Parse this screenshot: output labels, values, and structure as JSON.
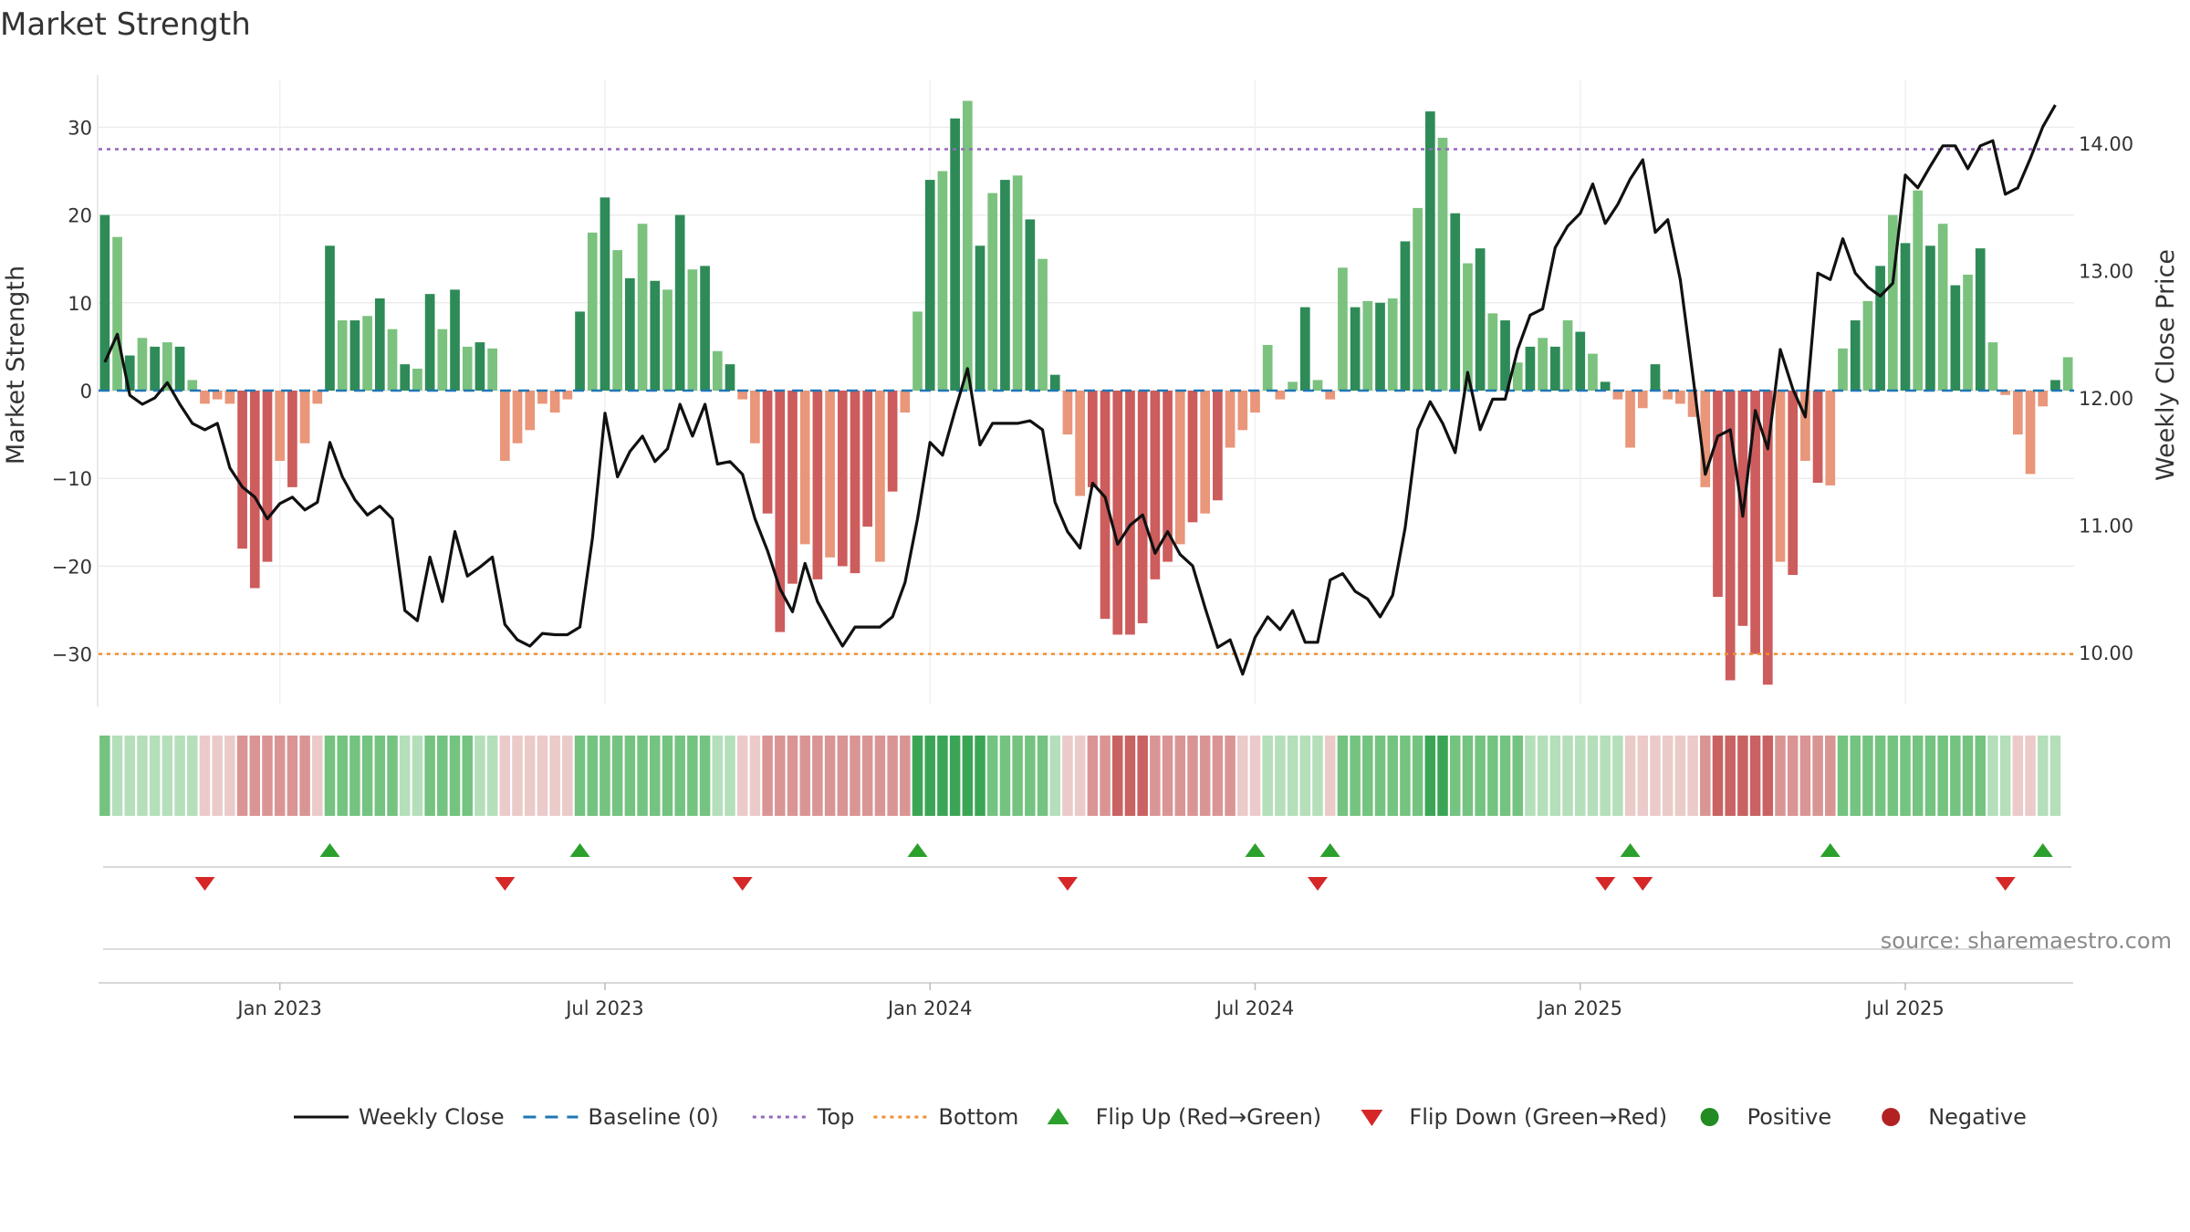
{
  "chart_data": {
    "type": "bar+line",
    "title": "Market Strength",
    "ylabel_left": "Market Strength",
    "ylabel_right": "Weekly Close Price",
    "left_ylim": [
      -36,
      36
    ],
    "right_ylim": [
      9.45,
      14.5
    ],
    "left_ticks": [
      "30",
      "20",
      "10",
      "0",
      "−10",
      "−20",
      "−30"
    ],
    "left_tick_values": [
      30,
      20,
      10,
      0,
      -10,
      -20,
      -30
    ],
    "right_ticks": [
      "14.00",
      "13.00",
      "12.00",
      "11.00",
      "10.00"
    ],
    "right_tick_values": [
      14,
      13,
      12,
      11,
      10
    ],
    "top_level": 27.5,
    "bottom_level": -30,
    "x_ticks": [
      "Jan 2023",
      "Jul 2023",
      "Jan 2024",
      "Jul 2024",
      "Jan 2025",
      "Jul 2025"
    ],
    "x_tick_weeks": [
      14,
      40,
      66,
      92,
      118,
      144
    ],
    "weeks": 158,
    "strength": [
      20,
      17.5,
      4,
      6,
      5,
      5.5,
      5,
      1.2,
      -1.5,
      -1,
      -1.5,
      -18,
      -22.5,
      -19.5,
      -8,
      -11,
      -6,
      -1.5,
      16.5,
      8,
      8,
      8.5,
      10.5,
      7,
      3,
      2.5,
      11,
      7,
      11.5,
      5,
      5.5,
      4.8,
      -8,
      -6,
      -4.5,
      -1.5,
      -2.5,
      -1,
      9,
      18,
      22,
      16,
      12.8,
      19,
      12.5,
      11.5,
      20,
      13.8,
      14.2,
      4.5,
      3,
      -1,
      -6,
      -14,
      -27.5,
      -22,
      -17.5,
      -21.5,
      -19,
      -20,
      -20.8,
      -15.5,
      -19.5,
      -11.5,
      -2.5,
      9,
      24,
      25,
      31,
      33,
      16.5,
      22.5,
      24,
      24.5,
      19.5,
      15,
      1.8,
      -5,
      -12,
      -11,
      -26,
      -27.8,
      -27.8,
      -26.5,
      -21.5,
      -19.5,
      -17.5,
      -15,
      -14,
      -12.5,
      -6.5,
      -4.5,
      -2.5,
      5.2,
      -1,
      1,
      9.5,
      1.2,
      -1,
      14,
      9.5,
      10.2,
      10,
      10.5,
      17,
      20.8,
      31.8,
      28.8,
      20.2,
      14.5,
      16.2,
      8.8,
      8,
      3.2,
      5,
      6,
      5,
      8,
      6.7,
      4.2,
      1,
      -1,
      -6.5,
      -2,
      3,
      -1,
      -1.5,
      -3,
      -11,
      -23.5,
      -33,
      -26.8,
      -30,
      -33.5,
      -19.5,
      -21,
      -8,
      -10.5,
      -10.8,
      4.8,
      8,
      10.2,
      14.2,
      20,
      16.8,
      22.8,
      16.5,
      19,
      12,
      13.2,
      16.2,
      5.5,
      -0.5,
      -5,
      -9.5,
      -1.8,
      1.2,
      3.8
    ],
    "weekly_close": [
      12.28,
      12.5,
      12.02,
      11.95,
      12,
      12.12,
      11.95,
      11.8,
      11.75,
      11.8,
      11.45,
      11.3,
      11.22,
      11.05,
      11.17,
      11.22,
      11.12,
      11.18,
      11.65,
      11.38,
      11.2,
      11.08,
      11.15,
      11.05,
      10.33,
      10.25,
      10.75,
      10.4,
      10.95,
      10.6,
      10.67,
      10.75,
      10.22,
      10.1,
      10.05,
      10.15,
      10.14,
      10.14,
      10.2,
      10.9,
      11.88,
      11.38,
      11.58,
      11.7,
      11.5,
      11.6,
      11.95,
      11.7,
      11.95,
      11.48,
      11.5,
      11.4,
      11.05,
      10.8,
      10.5,
      10.32,
      10.7,
      10.4,
      10.22,
      10.05,
      10.2,
      10.2,
      10.2,
      10.28,
      10.55,
      11.05,
      11.65,
      11.55,
      11.9,
      12.23,
      11.63,
      11.8,
      11.8,
      11.8,
      11.82,
      11.75,
      11.18,
      10.95,
      10.82,
      11.33,
      11.22,
      10.85,
      11,
      11.08,
      10.78,
      10.95,
      10.77,
      10.68,
      10.35,
      10.04,
      10.1,
      9.83,
      10.12,
      10.28,
      10.18,
      10.33,
      10.08,
      10.08,
      10.57,
      10.62,
      10.48,
      10.42,
      10.28,
      10.45,
      10.98,
      11.75,
      11.97,
      11.8,
      11.57,
      12.2,
      11.75,
      11.99,
      11.99,
      12.38,
      12.65,
      12.7,
      13.18,
      13.35,
      13.45,
      13.68,
      13.37,
      13.52,
      13.72,
      13.87,
      13.3,
      13.4,
      12.93,
      12.18,
      11.4,
      11.7,
      11.75,
      11.07,
      11.9,
      11.6,
      12.38,
      12.07,
      11.85,
      12.98,
      12.93,
      13.25,
      12.98,
      12.87,
      12.8,
      12.9,
      13.75,
      13.65,
      13.82,
      13.98,
      13.98,
      13.8,
      13.98,
      14.02,
      13.6,
      13.65,
      13.88,
      14.13,
      14.3
    ],
    "regime_level": [
      2,
      1,
      1,
      1,
      1,
      1,
      1,
      1,
      -1,
      -1,
      -1,
      -2,
      -2,
      -2,
      -2,
      -2,
      -2,
      -1,
      2,
      2,
      2,
      2,
      2,
      2,
      1,
      1,
      2,
      2,
      2,
      2,
      1,
      1,
      -1,
      -1,
      -1,
      -1,
      -1,
      -1,
      2,
      2,
      2,
      2,
      2,
      2,
      2,
      2,
      2,
      2,
      2,
      1,
      1,
      -1,
      -1,
      -2,
      -2,
      -2,
      -2,
      -2,
      -2,
      -2,
      -2,
      -2,
      -2,
      -2,
      -2,
      3,
      3,
      3,
      3,
      3,
      3,
      2,
      2,
      2,
      2,
      2,
      1,
      -1,
      -1,
      -2,
      -2,
      -3,
      -3,
      -3,
      -2,
      -2,
      -2,
      -2,
      -2,
      -2,
      -2,
      -1,
      -1,
      1,
      1,
      1,
      1,
      1,
      -1,
      2,
      2,
      2,
      2,
      2,
      2,
      2,
      3,
      3,
      2,
      2,
      2,
      2,
      2,
      2,
      1,
      1,
      1,
      1,
      1,
      1,
      1,
      1,
      -1,
      -1,
      -1,
      -1,
      -1,
      -1,
      -2,
      -3,
      -3,
      -3,
      -3,
      -3,
      -2,
      -2,
      -2,
      -2,
      -2,
      2,
      2,
      2,
      2,
      2,
      2,
      2,
      2,
      2,
      2,
      2,
      2,
      1,
      1,
      -1,
      -1,
      1,
      1
    ],
    "flip_up_weeks": [
      18,
      38,
      65,
      92,
      98,
      122,
      138,
      155
    ],
    "flip_down_weeks": [
      8,
      32,
      51,
      77,
      97,
      120,
      123,
      152
    ],
    "colors": {
      "strong_green": "#2e8b57",
      "light_green": "#7bc27e",
      "strong_red": "#cd5c5c",
      "light_red": "#e9967a",
      "line": "#111111",
      "baseline": "#1f77b4",
      "top": "#9467bd",
      "bottom": "#f28e2b",
      "flip_up": "#2ca02c",
      "flip_down": "#d62728",
      "positive": "#228b22",
      "negative": "#b22222"
    },
    "legend": [
      {
        "label": "Weekly Close",
        "kind": "line"
      },
      {
        "label": "Baseline (0)",
        "kind": "dash"
      },
      {
        "label": "Top",
        "kind": "dot-top"
      },
      {
        "label": "Bottom",
        "kind": "dot-bottom"
      },
      {
        "label": "Flip Up (Red→Green)",
        "kind": "tri-up"
      },
      {
        "label": "Flip Down (Green→Red)",
        "kind": "tri-down"
      },
      {
        "label": "Positive",
        "kind": "dot-pos"
      },
      {
        "label": "Negative",
        "kind": "dot-neg"
      }
    ],
    "source": "source: sharemaestro.com"
  }
}
